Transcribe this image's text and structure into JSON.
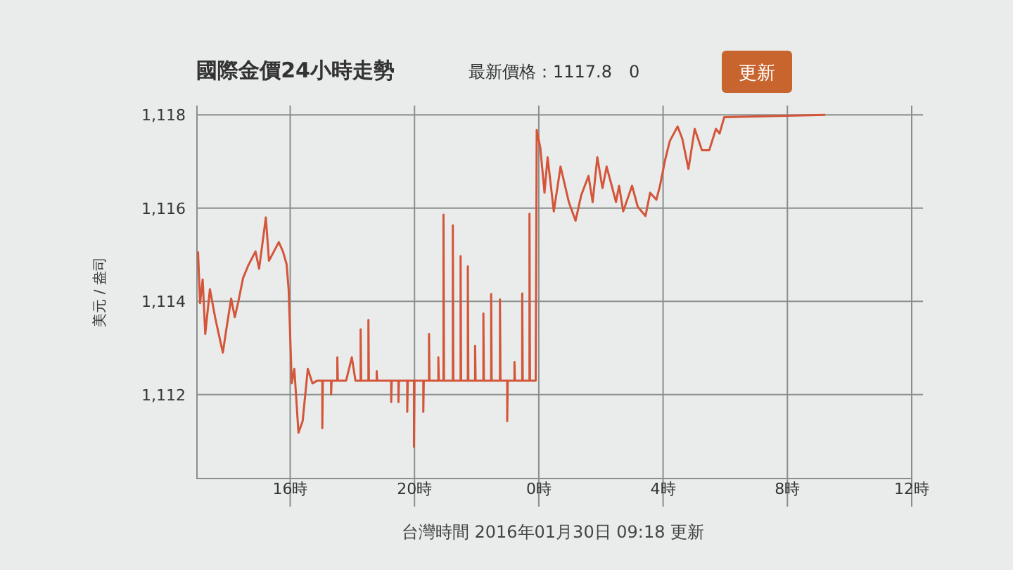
{
  "chart_data": {
    "type": "line",
    "title": "國際金價24小時走勢",
    "ylabel": "美元 / 盎司",
    "annotations": [
      "最新價格：1117.8　0",
      "更新",
      "台灣時間 2016年01月30日 09:18 更新"
    ],
    "xlim": [
      "2016-01-29T13:00",
      "2016-01-30T12:00"
    ],
    "ylim": [
      1110.2,
      1118.2
    ],
    "xticks": [
      {
        "value": "2016-01-29T16:00",
        "label": "16時"
      },
      {
        "value": "2016-01-29T20:00",
        "label": "20時"
      },
      {
        "value": "2016-01-30T00:00",
        "label": "0時"
      },
      {
        "value": "2016-01-30T04:00",
        "label": "4時"
      },
      {
        "value": "2016-01-30T08:00",
        "label": "8時"
      },
      {
        "value": "2016-01-30T12:00",
        "label": "12時"
      }
    ],
    "yticks": [
      {
        "value": 1112,
        "label": "1,112"
      },
      {
        "value": 1114,
        "label": "1,114"
      },
      {
        "value": 1116,
        "label": "1,116"
      },
      {
        "value": 1118,
        "label": "1,118"
      }
    ],
    "grid": true,
    "marker": "none",
    "line_style": "solid",
    "series": [
      {
        "color": "#d4553a",
        "x": [
          "2016-01-29T13:02",
          "2016-01-29T13:06",
          "2016-01-29T13:11",
          "2016-01-29T13:16",
          "2016-01-29T13:25",
          "2016-01-29T13:35",
          "2016-01-29T13:42",
          "2016-01-29T13:50",
          "2016-01-29T13:56",
          "2016-01-29T14:06",
          "2016-01-29T14:13",
          "2016-01-29T14:20",
          "2016-01-29T14:29",
          "2016-01-29T14:39",
          "2016-01-29T14:53",
          "2016-01-29T15:00",
          "2016-01-29T15:13",
          "2016-01-29T15:19",
          "2016-01-29T15:38",
          "2016-01-29T15:46",
          "2016-01-29T15:53",
          "2016-01-29T15:57",
          "2016-01-29T16:03",
          "2016-01-29T16:08",
          "2016-01-29T16:16",
          "2016-01-29T16:24",
          "2016-01-29T16:34",
          "2016-01-29T16:43",
          "2016-01-29T16:52",
          "2016-01-29T17:02",
          "2016-01-29T17:02",
          "2016-01-29T17:03",
          "2016-01-29T17:19",
          "2016-01-29T17:19",
          "2016-01-29T17:20",
          "2016-01-29T17:31",
          "2016-01-29T17:31",
          "2016-01-29T17:32",
          "2016-01-29T17:48",
          "2016-01-29T17:59",
          "2016-01-29T18:06",
          "2016-01-29T18:16",
          "2016-01-29T18:16",
          "2016-01-29T18:17",
          "2016-01-29T18:31",
          "2016-01-29T18:31",
          "2016-01-29T18:32",
          "2016-01-29T18:47",
          "2016-01-29T18:47",
          "2016-01-29T18:48",
          "2016-01-29T19:15",
          "2016-01-29T19:15",
          "2016-01-29T19:16",
          "2016-01-29T19:29",
          "2016-01-29T19:29",
          "2016-01-29T19:30",
          "2016-01-29T19:46",
          "2016-01-29T19:46",
          "2016-01-29T19:47",
          "2016-01-29T19:59",
          "2016-01-29T19:59",
          "2016-01-29T20:00",
          "2016-01-29T20:17",
          "2016-01-29T20:17",
          "2016-01-29T20:18",
          "2016-01-29T20:28",
          "2016-01-29T20:28",
          "2016-01-29T20:29",
          "2016-01-29T20:46",
          "2016-01-29T20:46",
          "2016-01-29T20:47",
          "2016-01-29T20:56",
          "2016-01-29T20:56",
          "2016-01-29T20:57",
          "2016-01-29T21:14",
          "2016-01-29T21:14",
          "2016-01-29T21:15",
          "2016-01-29T21:29",
          "2016-01-29T21:29",
          "2016-01-29T21:30",
          "2016-01-29T21:43",
          "2016-01-29T21:43",
          "2016-01-29T21:44",
          "2016-01-29T21:57",
          "2016-01-29T21:57",
          "2016-01-29T21:58",
          "2016-01-29T22:13",
          "2016-01-29T22:13",
          "2016-01-29T22:14",
          "2016-01-29T22:28",
          "2016-01-29T22:28",
          "2016-01-29T22:29",
          "2016-01-29T22:45",
          "2016-01-29T22:45",
          "2016-01-29T22:46",
          "2016-01-29T22:59",
          "2016-01-29T22:59",
          "2016-01-29T23:00",
          "2016-01-29T23:13",
          "2016-01-29T23:13",
          "2016-01-29T23:14",
          "2016-01-29T23:28",
          "2016-01-29T23:28",
          "2016-01-29T23:29",
          "2016-01-29T23:42",
          "2016-01-29T23:42",
          "2016-01-29T23:43",
          "2016-01-29T23:54",
          "2016-01-29T23:56",
          "2016-01-30T00:03",
          "2016-01-30T00:11",
          "2016-01-30T00:17",
          "2016-01-30T00:29",
          "2016-01-30T00:42",
          "2016-01-30T00:58",
          "2016-01-30T01:11",
          "2016-01-30T01:22",
          "2016-01-30T01:36",
          "2016-01-30T01:44",
          "2016-01-30T01:53",
          "2016-01-30T02:03",
          "2016-01-30T02:11",
          "2016-01-30T02:22",
          "2016-01-30T02:29",
          "2016-01-30T02:35",
          "2016-01-30T02:43",
          "2016-01-30T03:00",
          "2016-01-30T03:11",
          "2016-01-30T03:26",
          "2016-01-30T03:35",
          "2016-01-30T03:47",
          "2016-01-30T03:54",
          "2016-01-30T04:04",
          "2016-01-30T04:13",
          "2016-01-30T04:28",
          "2016-01-30T04:37",
          "2016-01-30T04:49",
          "2016-01-30T05:01",
          "2016-01-30T05:15",
          "2016-01-30T05:29",
          "2016-01-30T05:42",
          "2016-01-30T05:49",
          "2016-01-30T05:58",
          "2016-01-30T09:13"
        ],
        "values": [
          1115.07,
          1113.96,
          1114.47,
          1113.3,
          1114.26,
          1113.66,
          1113.3,
          1112.9,
          1113.35,
          1114.06,
          1113.66,
          1114.0,
          1114.5,
          1114.77,
          1115.07,
          1114.7,
          1115.8,
          1114.87,
          1115.27,
          1115.07,
          1114.8,
          1114.26,
          1112.24,
          1112.55,
          1111.18,
          1111.43,
          1112.55,
          1112.24,
          1112.3,
          1112.3,
          1111.28,
          1112.3,
          1112.3,
          1112.0,
          1112.3,
          1112.3,
          1112.8,
          1112.3,
          1112.3,
          1112.8,
          1112.3,
          1112.3,
          1113.4,
          1112.3,
          1112.3,
          1113.6,
          1112.3,
          1112.3,
          1112.5,
          1112.3,
          1112.3,
          1111.84,
          1112.3,
          1112.3,
          1111.84,
          1112.3,
          1112.3,
          1111.63,
          1112.3,
          1112.3,
          1110.88,
          1112.3,
          1112.3,
          1111.63,
          1112.3,
          1112.3,
          1113.3,
          1112.3,
          1112.3,
          1112.8,
          1112.3,
          1112.3,
          1115.86,
          1112.3,
          1112.3,
          1115.63,
          1112.3,
          1112.3,
          1114.97,
          1112.3,
          1112.3,
          1114.75,
          1112.3,
          1112.3,
          1113.05,
          1112.3,
          1112.3,
          1113.74,
          1112.3,
          1112.3,
          1114.16,
          1112.3,
          1112.3,
          1114.04,
          1112.3,
          1112.3,
          1111.43,
          1112.3,
          1112.3,
          1112.7,
          1112.3,
          1112.3,
          1114.17,
          1112.3,
          1112.3,
          1115.88,
          1112.3,
          1112.3,
          1117.68,
          1117.29,
          1116.33,
          1117.09,
          1115.93,
          1116.89,
          1116.13,
          1115.73,
          1116.28,
          1116.69,
          1116.13,
          1117.09,
          1116.43,
          1116.89,
          1116.43,
          1116.13,
          1116.48,
          1115.93,
          1116.48,
          1116.03,
          1115.83,
          1116.33,
          1116.18,
          1116.48,
          1117.04,
          1117.44,
          1117.75,
          1117.49,
          1116.84,
          1117.7,
          1117.24,
          1117.24,
          1117.7,
          1117.6,
          1117.95,
          1118.0
        ]
      }
    ]
  }
}
